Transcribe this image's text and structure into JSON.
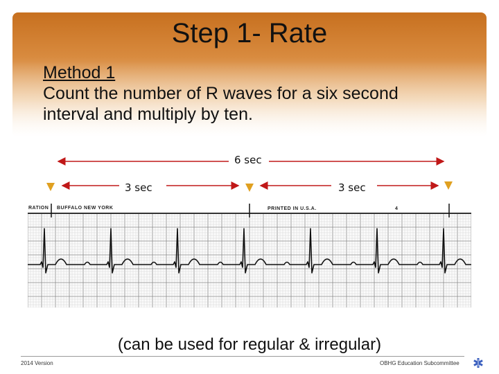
{
  "slide": {
    "title": "Step 1- Rate",
    "method_heading": "Method 1",
    "instruction_line1": "Count the number of R waves for a six second",
    "instruction_line2": "interval and multiply by ten.",
    "caption": "(can be used for regular & irregular)"
  },
  "diagram": {
    "interval_total_label": "6 sec",
    "interval_half_left_label": "3 sec",
    "interval_half_right_label": "3 sec",
    "arrow_color": "#c01818",
    "marker_color": "#e0a020"
  },
  "ecg_strip": {
    "header_left": "RATION",
    "header_brand": "BUFFALO NEW YORK",
    "header_printed": "PRINTED IN U.S.A.",
    "header_page": "4",
    "r_wave_count": 7
  },
  "footer": {
    "left": "2014 Version",
    "right": "OBHG Education Subcommittee",
    "icon": "star-of-life-icon",
    "accent": "#3a5fbf"
  }
}
